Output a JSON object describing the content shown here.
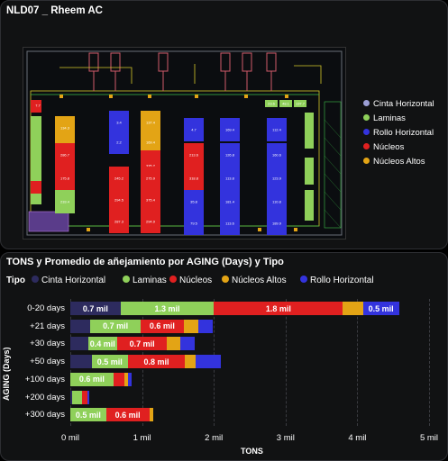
{
  "header": {
    "title": "NLD07 _ Rheem AC"
  },
  "map_legend": [
    {
      "label": "Cinta Horizontal",
      "color": "#9c9fd6"
    },
    {
      "label": "Laminas",
      "color": "#8fd05a"
    },
    {
      "label": "Rollo Horizontal",
      "color": "#3333dd"
    },
    {
      "label": "Núcleos",
      "color": "#e02020"
    },
    {
      "label": "Núcleos Altos",
      "color": "#e3a415"
    }
  ],
  "plan_blocks": [
    {
      "label": "7.7",
      "color": "#e02020"
    },
    {
      "label": "134.3",
      "color": "#e3a415"
    },
    {
      "label": "3.4",
      "color": "#3333dd"
    },
    {
      "label": "137.4",
      "color": "#e3a415"
    },
    {
      "label": "20.7",
      "color": "#e3a415"
    },
    {
      "label": "2.2",
      "color": "#3333dd"
    },
    {
      "label": "169.4",
      "color": "#e3a415"
    },
    {
      "label": "4.7",
      "color": "#3333dd"
    },
    {
      "label": "169.4",
      "color": "#3333dd"
    },
    {
      "label": "112.4",
      "color": "#3333dd"
    },
    {
      "label": "235.3",
      "color": "#e02020"
    },
    {
      "label": "286.7",
      "color": "#e02020"
    },
    {
      "label": "335.2",
      "color": "#e02020"
    },
    {
      "label": "213.6",
      "color": "#e02020"
    },
    {
      "label": "126.8",
      "color": "#3333dd"
    },
    {
      "label": "160.6",
      "color": "#3333dd"
    },
    {
      "label": "175.8",
      "color": "#e02020"
    },
    {
      "label": "245.2",
      "color": "#e02020"
    },
    {
      "label": "275.9",
      "color": "#e02020"
    },
    {
      "label": "318.8",
      "color": "#e02020"
    },
    {
      "label": "113.8",
      "color": "#3333dd"
    },
    {
      "label": "123.9",
      "color": "#3333dd"
    },
    {
      "label": "233.4",
      "color": "#8fd05a"
    },
    {
      "label": "294.5",
      "color": "#e02020"
    },
    {
      "label": "375.4",
      "color": "#e02020"
    },
    {
      "label": "35.8",
      "color": "#3333dd"
    },
    {
      "label": "181.4",
      "color": "#3333dd"
    },
    {
      "label": "110.8",
      "color": "#3333dd"
    },
    {
      "label": "287.3",
      "color": "#e02020"
    },
    {
      "label": "294.9",
      "color": "#e02020"
    },
    {
      "label": "79.5",
      "color": "#3333dd"
    },
    {
      "label": "113.6",
      "color": "#3333dd"
    },
    {
      "label": "189.9",
      "color": "#3333dd"
    },
    {
      "label": "23.6",
      "color": "#8fd05a"
    },
    {
      "label": "48.1",
      "color": "#8fd05a"
    },
    {
      "label": "137.7",
      "color": "#8fd05a"
    }
  ],
  "chart_data": {
    "type": "bar",
    "orientation": "horizontal-stacked",
    "title": "TONS y Promedio de añejamiento por AGING (Days) y Tipo",
    "legend_title": "Tipo",
    "xlabel": "TONS",
    "ylabel": "AGING (Days)",
    "xlim": [
      0,
      5000
    ],
    "x_ticks": [
      "0 mil",
      "1 mil",
      "2 mil",
      "3 mil",
      "4 mil",
      "5 mil"
    ],
    "categories": [
      "0-20 days",
      "+21 days",
      "+30 days",
      "+50 days",
      "+100 days",
      "+200 days",
      "+300 days"
    ],
    "series": [
      {
        "name": "Cinta Horizontal",
        "color": "#2d2b5e",
        "values": [
          700,
          280,
          250,
          300,
          0,
          30,
          0
        ],
        "labels": [
          "0.7 mil",
          "",
          "",
          "",
          "",
          "",
          ""
        ]
      },
      {
        "name": "Laminas",
        "color": "#8fd05a",
        "values": [
          1300,
          700,
          400,
          500,
          600,
          130,
          500
        ],
        "labels": [
          "1.3 mil",
          "0.7 mil",
          "0.4 mil",
          "0.5 mil",
          "0.6 mil",
          "",
          "0.5 mil"
        ]
      },
      {
        "name": "Núcleos",
        "color": "#e02020",
        "values": [
          1800,
          600,
          700,
          800,
          150,
          80,
          600
        ],
        "labels": [
          "1.8 mil",
          "0.6 mil",
          "0.7 mil",
          "0.8 mil",
          "",
          "",
          "0.6 mil"
        ]
      },
      {
        "name": "Núcleos Altos",
        "color": "#e3a415",
        "values": [
          280,
          200,
          180,
          150,
          50,
          0,
          50
        ],
        "labels": [
          "",
          "",
          "",
          "",
          "",
          "",
          ""
        ]
      },
      {
        "name": "Rollo Horizontal",
        "color": "#3333dd",
        "values": [
          500,
          200,
          200,
          350,
          50,
          30,
          0
        ],
        "labels": [
          "0.5 mil",
          "",
          "",
          "",
          "",
          "",
          ""
        ]
      }
    ]
  }
}
